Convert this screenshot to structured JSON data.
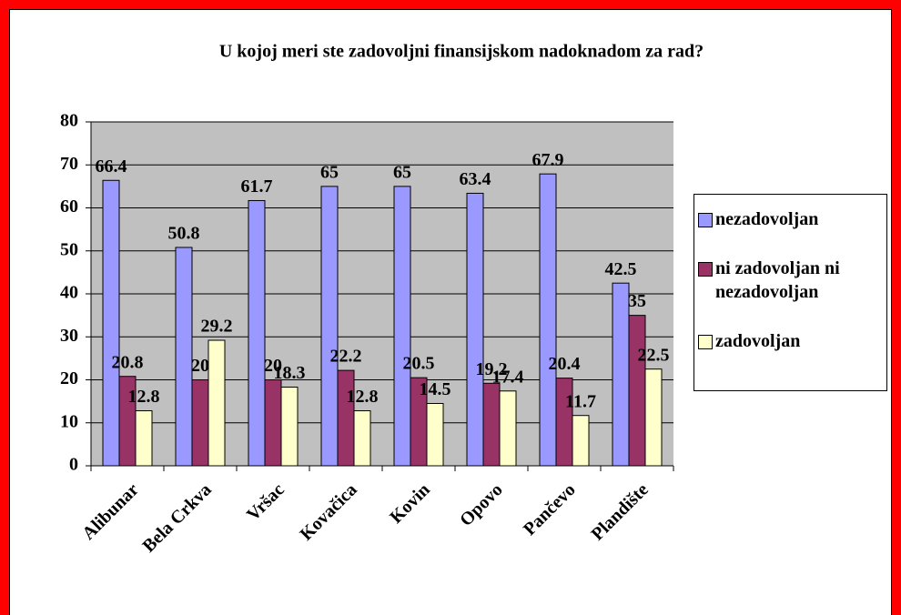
{
  "chart_data": {
    "type": "bar",
    "title": "U kojoj meri ste zadovoljni finansijskom nadoknadom za rad?",
    "categories": [
      "Alibunar",
      "Bela Crkva",
      "Vršac",
      "Kovačica",
      "Kovin",
      "Opovo",
      "Pančevo",
      "Plandište"
    ],
    "series": [
      {
        "name": "nezadovoljan",
        "color": "#9999ff",
        "values": [
          66.4,
          50.8,
          61.7,
          65,
          65,
          63.4,
          67.9,
          42.5
        ]
      },
      {
        "name": "ni zadovoljan ni nezadovoljan",
        "color": "#993366",
        "values": [
          20.8,
          20,
          20,
          22.2,
          20.5,
          19.2,
          20.4,
          35
        ]
      },
      {
        "name": "zadovoljan",
        "color": "#ffffcc",
        "values": [
          12.8,
          29.2,
          18.3,
          12.8,
          14.5,
          17.4,
          11.7,
          22.5
        ]
      }
    ],
    "ylim": [
      0,
      80
    ],
    "yticks": [
      0,
      10,
      20,
      30,
      40,
      50,
      60,
      70,
      80
    ],
    "grid": true,
    "legend": "right"
  }
}
